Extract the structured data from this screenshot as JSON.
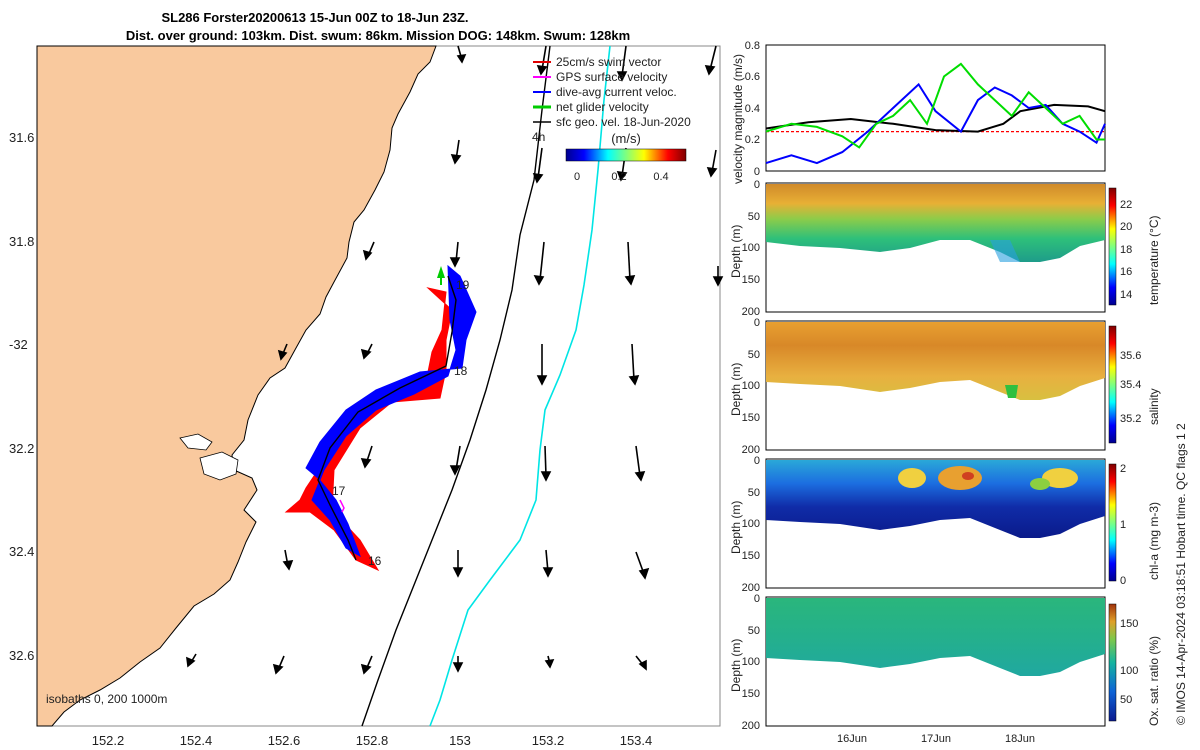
{
  "title_line1": "SL286 Forster20200613 15-Jun 00Z to 18-Jun 23Z.",
  "title_line2": "Dist. over ground: 103km. Dist. swum: 86km. Mission DOG: 148km. Swum: 128km",
  "map": {
    "lat_ticks": [
      "31.6",
      "31.8",
      "-32",
      "32.2",
      "32.4",
      "32.6"
    ],
    "lon_ticks": [
      "152.2",
      "152.4",
      "152.6",
      "152.8",
      "153",
      "153.2",
      "153.4"
    ],
    "legend": [
      {
        "label": "25cm/s swim vector",
        "color": "#e00000"
      },
      {
        "label": "GPS surface velocity",
        "color": "#ff00ff"
      },
      {
        "label": "dive-avg current veloc.",
        "color": "#0000ff"
      },
      {
        "label": "net glider velocity",
        "color": "#00cc00"
      },
      {
        "label": "sfc geo. vel. 18-Jun-2020",
        "color": "#000000"
      }
    ],
    "legend_extra": "4h",
    "colorbar_title": "(m/s)",
    "colorbar_ticks": [
      "0",
      "0.2",
      "0.4"
    ],
    "day_labels": [
      "19",
      "18",
      "17",
      "16"
    ],
    "isobath_label": "isobaths  0,  200  1000m",
    "colors": {
      "land": "#f9c99e",
      "track_blue": "#0000ff",
      "track_red": "#ff0000",
      "current": "#00e5e5"
    }
  },
  "chart_data": [
    {
      "type": "line",
      "ylabel": "velocity magnitude (m/s)",
      "ylim": [
        0,
        0.8
      ],
      "yticks": [
        "0",
        "0.2",
        "0.4",
        "0.6",
        "0.8"
      ],
      "x_range_days": [
        15.0,
        19.0
      ],
      "series": [
        {
          "color": "#ff0000",
          "x": [
            15.0,
            19.0
          ],
          "y": [
            0.25,
            0.25
          ]
        },
        {
          "color": "#000000",
          "x": [
            15.0,
            15.5,
            16.0,
            16.5,
            17.0,
            17.5,
            17.8,
            18.0,
            18.4,
            18.8,
            19.0
          ],
          "y": [
            0.27,
            0.31,
            0.33,
            0.3,
            0.26,
            0.25,
            0.3,
            0.38,
            0.42,
            0.41,
            0.38
          ]
        },
        {
          "color": "#0000ff",
          "x": [
            15.0,
            15.3,
            15.6,
            15.9,
            16.2,
            16.5,
            16.8,
            17.0,
            17.3,
            17.5,
            17.7,
            17.9,
            18.1,
            18.3,
            18.5,
            18.7,
            18.9,
            19.0
          ],
          "y": [
            0.05,
            0.1,
            0.05,
            0.12,
            0.25,
            0.4,
            0.55,
            0.38,
            0.25,
            0.45,
            0.53,
            0.48,
            0.4,
            0.42,
            0.3,
            0.25,
            0.18,
            0.3
          ]
        },
        {
          "color": "#00dd00",
          "x": [
            15.0,
            15.3,
            15.6,
            15.9,
            16.1,
            16.3,
            16.5,
            16.7,
            16.9,
            17.1,
            17.3,
            17.5,
            17.7,
            17.9,
            18.1,
            18.3,
            18.5,
            18.7,
            18.9,
            19.0
          ],
          "y": [
            0.25,
            0.3,
            0.28,
            0.22,
            0.15,
            0.3,
            0.35,
            0.45,
            0.3,
            0.6,
            0.68,
            0.55,
            0.45,
            0.35,
            0.5,
            0.4,
            0.3,
            0.35,
            0.2,
            0.2
          ]
        }
      ]
    },
    {
      "type": "heatmap",
      "ylabel": "Depth (m)",
      "ylim": [
        200,
        0
      ],
      "yticks": [
        "0",
        "50",
        "100",
        "150",
        "200"
      ],
      "colorbar_label": "temperature (°C)",
      "colorbar_ticks": [
        "22",
        "20",
        "18",
        "16",
        "14"
      ]
    },
    {
      "type": "heatmap",
      "ylabel": "Depth (m)",
      "ylim": [
        200,
        0
      ],
      "yticks": [
        "0",
        "50",
        "100",
        "150",
        "200"
      ],
      "colorbar_label": "salinity",
      "colorbar_ticks": [
        "35.6",
        "35.4",
        "35.2"
      ]
    },
    {
      "type": "heatmap",
      "ylabel": "Depth (m)",
      "ylim": [
        200,
        0
      ],
      "yticks": [
        "0",
        "50",
        "100",
        "150",
        "200"
      ],
      "colorbar_label": "chl-a (mg m-3)",
      "colorbar_ticks": [
        "2",
        "1",
        "0"
      ]
    },
    {
      "type": "heatmap",
      "ylabel": "Depth (m)",
      "ylim": [
        200,
        0
      ],
      "yticks": [
        "0",
        "50",
        "100",
        "150",
        "200"
      ],
      "colorbar_label": "Ox. sat. ratio (%)",
      "colorbar_ticks": [
        "150",
        "100",
        "50"
      ],
      "x_tick_labels": [
        "16Jun",
        "17Jun",
        "18Jun"
      ]
    }
  ],
  "side_note": "© IMOS 14-Apr-2024 03:18:51 Hobart time. QC flags 1  2"
}
